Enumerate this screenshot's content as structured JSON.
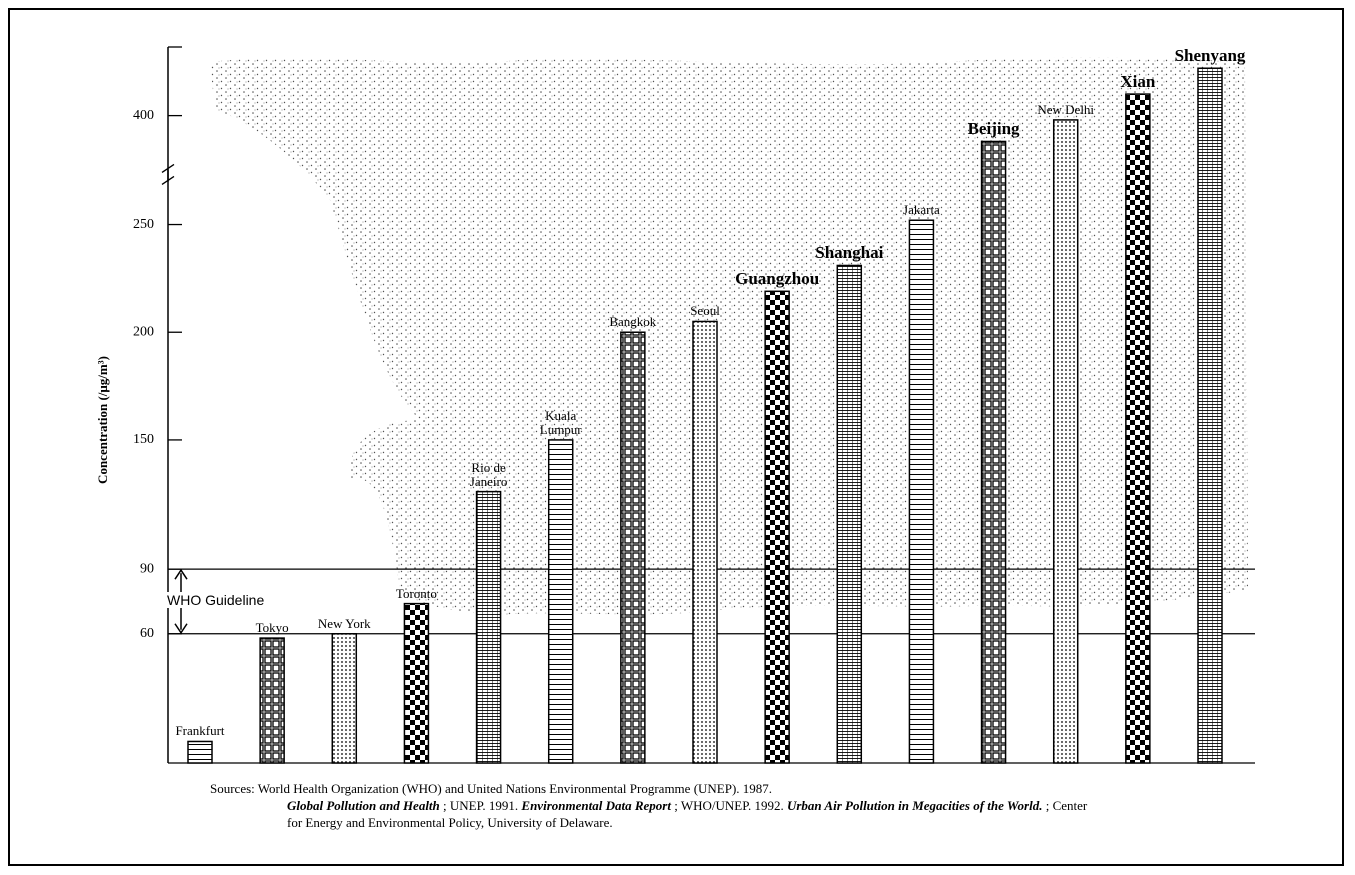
{
  "chart_data": {
    "type": "bar",
    "y_label": "Concentration (/μg/m³)",
    "categories": [
      "Frankfurt",
      "Tokyo",
      "New York",
      "Toronto",
      "Rio de Janeiro",
      "Kuala Lumpur",
      "Bangkok",
      "Seoul",
      "Guangzhou",
      "Shanghai",
      "Jakarta",
      "Beijing",
      "New Delhi",
      "Xian",
      "Shenyang"
    ],
    "values": [
      10,
      58,
      60,
      74,
      126,
      150,
      200,
      205,
      219,
      231,
      252,
      388,
      398,
      410,
      422
    ],
    "label_bold": [
      false,
      false,
      false,
      false,
      false,
      false,
      false,
      false,
      true,
      true,
      false,
      true,
      false,
      true,
      true
    ],
    "color": "#000000",
    "ylim": [
      0,
      430
    ],
    "axis_break": [
      270,
      375
    ],
    "yticks": [
      60,
      90,
      150,
      200,
      250,
      400
    ],
    "guideline": {
      "label": "WHO Guideline",
      "range": [
        60,
        90
      ]
    },
    "source": [
      {
        "text": "Sources: World Health Organization (WHO) and United Nations Environmental Programme (UNEP). 1987.",
        "emphasis": false
      },
      {
        "text": "Global Pollution and Health",
        "emphasis": true
      },
      {
        "text": " ; UNEP. 1991. ",
        "emphasis": false
      },
      {
        "text": "Environmental Data Report",
        "emphasis": true
      },
      {
        "text": " ; WHO/UNEP. 1992. ",
        "emphasis": false
      },
      {
        "text": "Urban Air Pollution in Megacities of the World.",
        "emphasis": true
      },
      {
        "text": " ; Center for Energy and Environmental Policy, University of Delaware.",
        "emphasis": false
      }
    ]
  }
}
